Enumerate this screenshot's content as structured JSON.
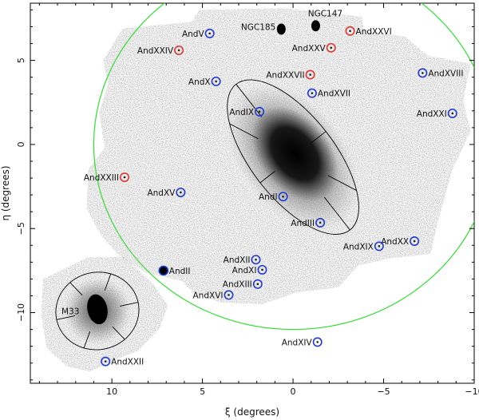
{
  "chart_data": {
    "type": "scatter",
    "xlabel": "ξ (degrees)",
    "ylabel": "η (degrees)",
    "xlim": [
      14.5,
      -10
    ],
    "ylim": [
      -14.2,
      8.4
    ],
    "x_ticks": [
      10,
      5,
      0,
      -5,
      -10
    ],
    "y_ticks": [
      5,
      0,
      -5,
      -10
    ],
    "grid": false,
    "colors": {
      "blue": "#1f3bd6",
      "red": "#e0362e",
      "green": "#33dd33",
      "black": "#000000",
      "survey": "#9a9a9a"
    },
    "boundary_circle": {
      "center": [
        0,
        0
      ],
      "radius": 11.0
    },
    "m31_ellipse": {
      "center": [
        0,
        -0.75
      ],
      "semi_major": 5.5,
      "semi_minor": 2.3,
      "pa_deg": 38
    },
    "m33_ellipse": {
      "center": [
        10.8,
        -9.9
      ],
      "semi_major": 2.3,
      "semi_minor": 2.3
    },
    "m33_core": {
      "center": [
        10.8,
        -9.8
      ],
      "semi_major": 0.9,
      "semi_minor": 0.55
    },
    "galaxies": [
      {
        "name": "NGC185",
        "x": 0.65,
        "y": 7.0,
        "label_pos": "left",
        "marker": "blob"
      },
      {
        "name": "NGC147",
        "x": -1.25,
        "y": 7.2,
        "label_pos": "top",
        "marker": "blob"
      },
      {
        "name": "AndV",
        "x": 4.6,
        "y": 6.6,
        "label_pos": "left",
        "marker": "blue"
      },
      {
        "name": "AndXXIV",
        "x": 6.3,
        "y": 5.6,
        "label_pos": "left",
        "marker": "red"
      },
      {
        "name": "AndXXVI",
        "x": -3.15,
        "y": 6.75,
        "label_pos": "right",
        "marker": "red"
      },
      {
        "name": "AndXXV",
        "x": -2.1,
        "y": 5.75,
        "label_pos": "left",
        "marker": "red"
      },
      {
        "name": "AndXXVII",
        "x": -0.95,
        "y": 4.15,
        "label_pos": "left",
        "marker": "red"
      },
      {
        "name": "AndXVIII",
        "x": -7.15,
        "y": 4.25,
        "label_pos": "right",
        "marker": "blue"
      },
      {
        "name": "AndX",
        "x": 4.25,
        "y": 3.75,
        "label_pos": "left",
        "marker": "blue"
      },
      {
        "name": "AndXVII",
        "x": -1.05,
        "y": 3.05,
        "label_pos": "right",
        "marker": "blue"
      },
      {
        "name": "AndIX",
        "x": 1.85,
        "y": 1.95,
        "label_pos": "left",
        "marker": "blue"
      },
      {
        "name": "AndXXI",
        "x": -8.8,
        "y": 1.85,
        "label_pos": "left",
        "marker": "blue"
      },
      {
        "name": "AndXXIII",
        "x": 9.3,
        "y": -1.95,
        "label_pos": "left",
        "marker": "red"
      },
      {
        "name": "AndXV",
        "x": 6.2,
        "y": -2.85,
        "label_pos": "left",
        "marker": "blue"
      },
      {
        "name": "AndI",
        "x": 0.55,
        "y": -3.1,
        "label_pos": "left",
        "marker": "blue"
      },
      {
        "name": "AndIII",
        "x": -1.5,
        "y": -4.65,
        "label_pos": "left",
        "marker": "blue"
      },
      {
        "name": "AndXX",
        "x": -6.7,
        "y": -5.75,
        "label_pos": "left",
        "marker": "blue"
      },
      {
        "name": "AndXIX",
        "x": -4.75,
        "y": -6.05,
        "label_pos": "left",
        "marker": "blue"
      },
      {
        "name": "AndXII",
        "x": 2.05,
        "y": -6.85,
        "label_pos": "left",
        "marker": "blue"
      },
      {
        "name": "AndXI",
        "x": 1.7,
        "y": -7.45,
        "label_pos": "left",
        "marker": "blue"
      },
      {
        "name": "AndII",
        "x": 7.15,
        "y": -7.5,
        "label_pos": "right",
        "marker": "filled"
      },
      {
        "name": "AndXIII",
        "x": 1.95,
        "y": -8.3,
        "label_pos": "left",
        "marker": "blue"
      },
      {
        "name": "AndXVI",
        "x": 3.55,
        "y": -8.95,
        "label_pos": "left",
        "marker": "blue"
      },
      {
        "name": "M33",
        "x": 11.0,
        "y": -9.9,
        "label_pos": "left",
        "marker": "none"
      },
      {
        "name": "AndXIV",
        "x": -1.35,
        "y": -11.75,
        "label_pos": "left",
        "marker": "blue"
      },
      {
        "name": "AndXXII",
        "x": 10.35,
        "y": -12.9,
        "label_pos": "right",
        "marker": "blue"
      }
    ]
  }
}
